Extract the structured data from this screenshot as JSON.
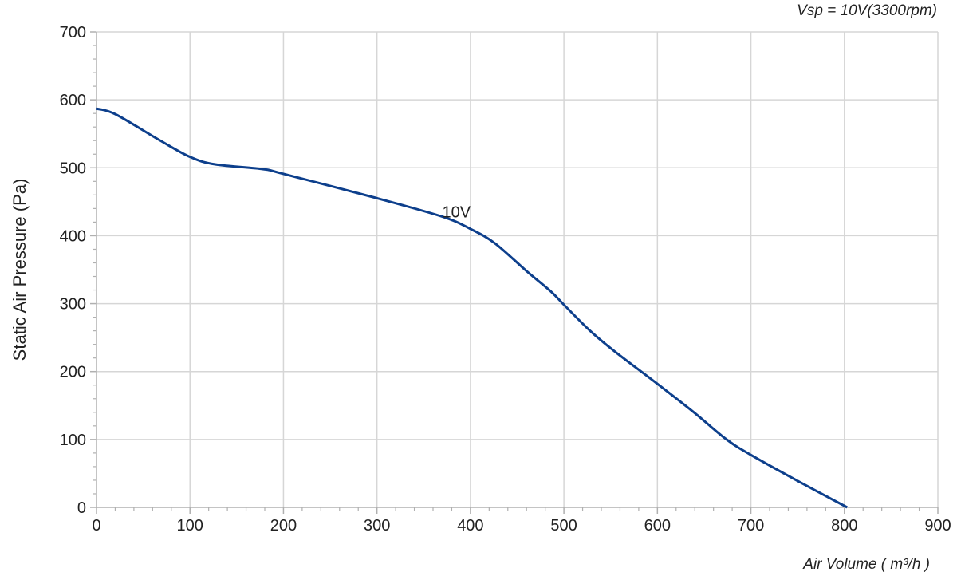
{
  "chart_data": {
    "type": "line",
    "title": "Vsp = 10V(3300rpm)",
    "xlabel": "Air Volume ( m³/h )",
    "ylabel": "Static Air Pressure  (Pa)",
    "xlim": [
      0,
      900
    ],
    "ylim": [
      0,
      700
    ],
    "xticks": [
      "0",
      "100",
      "200",
      "300",
      "400",
      "500",
      "600",
      "700",
      "800",
      "900"
    ],
    "yticks": [
      "0",
      "100",
      "200",
      "300",
      "400",
      "500",
      "600",
      "700"
    ],
    "grid": true,
    "colors": {
      "series": "#0d3f8c",
      "grid": "#d6d6d6",
      "axis": "#b0b0b0"
    },
    "series": [
      {
        "name": "10V",
        "x": [
          0,
          20,
          67,
          100,
          127,
          178,
          200,
          298,
          370,
          400,
          426,
          460,
          486,
          501,
          528,
          554,
          598,
          639,
          673,
          699,
          750,
          803
        ],
        "y": [
          587,
          579,
          541,
          516,
          505,
          498,
          491,
          456,
          428,
          410,
          389,
          348,
          318,
          297,
          260,
          230,
          184,
          140,
          101,
          78,
          39,
          0
        ]
      }
    ],
    "annotations": [
      {
        "text": "10V",
        "x": 385,
        "y": 435
      }
    ]
  }
}
